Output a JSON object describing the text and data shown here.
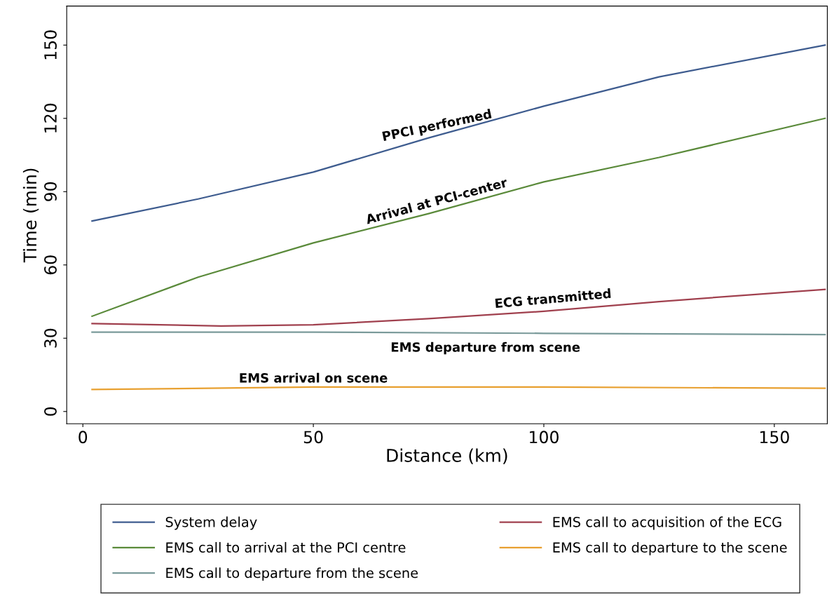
{
  "chart_data": {
    "type": "line",
    "xlabel": "Distance (km)",
    "ylabel": "Time (min)",
    "xlim": [
      -3.5,
      161.5
    ],
    "ylim": [
      -5,
      166
    ],
    "xticks": [
      0,
      50,
      100,
      150
    ],
    "yticks": [
      0,
      30,
      60,
      90,
      120,
      150
    ],
    "grid": false,
    "legend": "bottom",
    "marker": "none",
    "line_style": "solid",
    "series": [
      {
        "name": "System delay",
        "color": "#3e5c8f",
        "x": [
          2,
          25,
          50,
          75,
          100,
          125,
          161
        ],
        "values": [
          78,
          87,
          98,
          112,
          125,
          137,
          150
        ]
      },
      {
        "name": "EMS call to arrival at the PCI centre",
        "color": "#5a8a3a",
        "x": [
          2,
          25,
          50,
          75,
          100,
          125,
          161
        ],
        "values": [
          39,
          55,
          69,
          81,
          94,
          104,
          120
        ]
      },
      {
        "name": "EMS call to departure from the scene",
        "color": "#7a9a9a",
        "x": [
          2,
          50,
          100,
          161
        ],
        "values": [
          32.5,
          32.5,
          32,
          31.5
        ]
      },
      {
        "name": "EMS call to acquisition of the ECG",
        "color": "#a0404e",
        "x": [
          2,
          30,
          50,
          75,
          100,
          125,
          161
        ],
        "values": [
          36,
          35,
          35.5,
          38,
          41,
          45,
          50
        ]
      },
      {
        "name": "EMS call to departure to the scene",
        "color": "#e8a030",
        "x": [
          2,
          50,
          100,
          161
        ],
        "values": [
          9,
          10,
          10,
          9.5
        ]
      }
    ],
    "annotations": [
      {
        "text": "PPCI performed",
        "x": 75,
        "y": 112
      },
      {
        "text": "Arrival at PCI-center",
        "x": 75,
        "y": 81
      },
      {
        "text": "ECG transmitted",
        "x": 100,
        "y": 41
      },
      {
        "text": "EMS departure from scene",
        "x": 100,
        "y": 32
      },
      {
        "text": "EMS arrival on scene",
        "x": 50,
        "y": 10
      }
    ]
  }
}
